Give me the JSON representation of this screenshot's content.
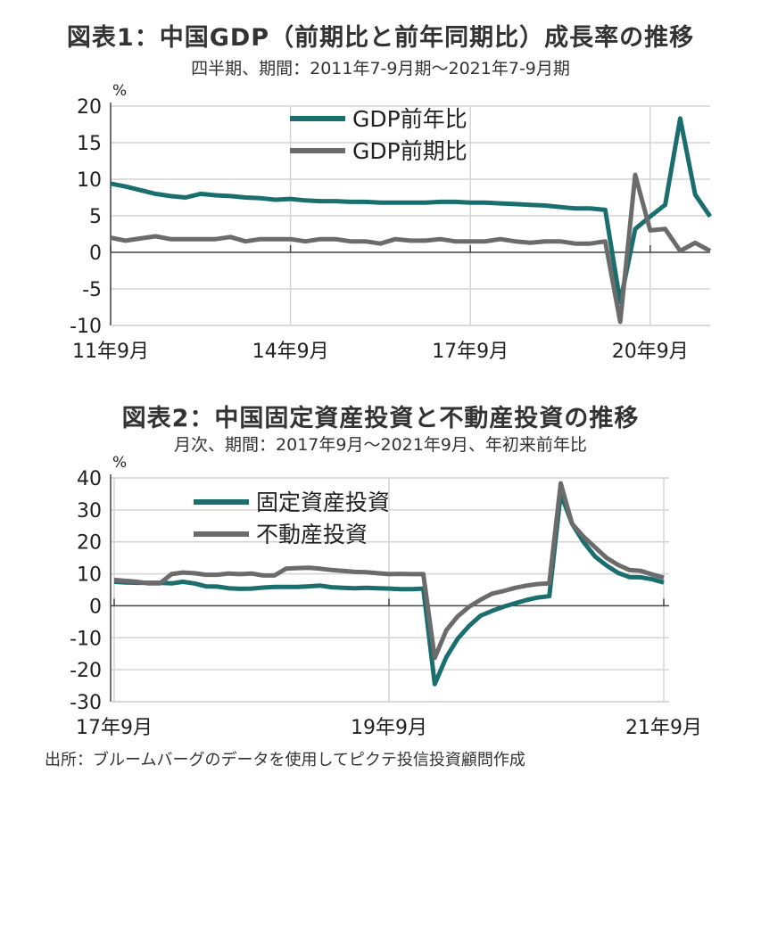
{
  "figure1": {
    "title": "図表1：中国GDP（前期比と前年同期比）成長率の推移",
    "subtitle": "四半期、期間：2011年7-9月期～2021年7-9月期"
  },
  "figure2": {
    "title": "図表2：中国固定資産投資と不動産投資の推移",
    "subtitle": "月次、期間：2017年9月～2021年9月、年初来前年比"
  },
  "source": "出所：ブルームバーグのデータを使用してピクテ投信投資顧問作成",
  "chart_data": [
    {
      "type": "line",
      "title": "図表1：中国GDP（前期比と前年同期比）成長率の推移",
      "subtitle": "四半期、期間：2011年7-9月期～2021年7-9月期",
      "ylabel": "%",
      "ylim": [
        -10,
        20
      ],
      "yticks": [
        "20",
        "15",
        "10",
        "5",
        "0",
        "-5",
        "-10"
      ],
      "yticks_values": [
        20,
        15,
        10,
        5,
        0,
        -5,
        -10
      ],
      "xtick_labels": [
        "11年9月",
        "14年9月",
        "17年9月",
        "20年9月"
      ],
      "xtick_index": [
        0,
        12,
        24,
        36
      ],
      "n_points": 41,
      "legend_position": "top-center",
      "grid": true,
      "series": [
        {
          "name": "GDP前年比",
          "color": "#1a6f6e",
          "values": [
            9.4,
            9.0,
            8.5,
            8.0,
            7.7,
            7.5,
            8.0,
            7.8,
            7.7,
            7.5,
            7.4,
            7.2,
            7.3,
            7.1,
            7.0,
            7.0,
            6.9,
            6.9,
            6.8,
            6.8,
            6.8,
            6.8,
            6.9,
            6.9,
            6.8,
            6.8,
            6.7,
            6.6,
            6.5,
            6.4,
            6.2,
            6.0,
            6.0,
            5.8,
            -6.8,
            3.2,
            4.9,
            6.5,
            18.3,
            7.9,
            4.9
          ]
        },
        {
          "name": "GDP前期比",
          "color": "#6b6b6b",
          "values": [
            2.0,
            1.6,
            1.9,
            2.2,
            1.8,
            1.8,
            1.8,
            1.8,
            2.1,
            1.5,
            1.8,
            1.8,
            1.8,
            1.5,
            1.8,
            1.8,
            1.5,
            1.5,
            1.2,
            1.8,
            1.6,
            1.6,
            1.8,
            1.5,
            1.5,
            1.5,
            1.8,
            1.5,
            1.3,
            1.5,
            1.5,
            1.2,
            1.2,
            1.5,
            -9.5,
            10.6,
            3.0,
            3.2,
            0.2,
            1.3,
            0.2
          ]
        }
      ]
    },
    {
      "type": "line",
      "title": "図表2：中国固定資産投資と不動産投資の推移",
      "subtitle": "月次、期間：2017年9月～2021年9月、年初来前年比",
      "ylabel": "%",
      "ylim": [
        -30,
        40
      ],
      "yticks": [
        "40",
        "30",
        "20",
        "10",
        "0",
        "-10",
        "-20",
        "-30"
      ],
      "yticks_values": [
        40,
        30,
        20,
        10,
        0,
        -10,
        -20,
        -30
      ],
      "xtick_labels": [
        "17年9月",
        "19年9月",
        "21年9月"
      ],
      "xtick_index": [
        0,
        24,
        48
      ],
      "n_points": 49,
      "legend_position": "top-left",
      "grid": true,
      "series": [
        {
          "name": "固定資産投資",
          "color": "#1a6f6e",
          "values": [
            7.5,
            7.3,
            7.2,
            7.2,
            7.2,
            7.0,
            7.5,
            7.0,
            6.1,
            6.0,
            5.5,
            5.3,
            5.4,
            5.7,
            5.9,
            5.9,
            5.9,
            6.1,
            6.3,
            5.8,
            5.6,
            5.5,
            5.6,
            5.5,
            5.4,
            5.2,
            5.2,
            5.4,
            -24.5,
            -16.1,
            -10.3,
            -6.3,
            -3.1,
            -1.6,
            -0.3,
            0.8,
            1.8,
            2.6,
            3.0,
            35.0,
            25.6,
            19.9,
            15.4,
            12.6,
            10.3,
            9.0,
            8.9,
            8.3,
            7.3
          ]
        },
        {
          "name": "不動産投資",
          "color": "#6b6b6b",
          "values": [
            8.1,
            7.8,
            7.5,
            7.0,
            7.0,
            9.9,
            10.4,
            10.2,
            9.7,
            9.7,
            10.1,
            9.9,
            10.1,
            9.5,
            9.5,
            11.6,
            11.8,
            11.9,
            11.6,
            11.2,
            10.9,
            10.6,
            10.5,
            10.2,
            9.9,
            10.0,
            9.9,
            9.9,
            -16.3,
            -7.7,
            -3.3,
            -0.3,
            1.9,
            3.8,
            4.6,
            5.6,
            6.3,
            6.8,
            7.0,
            38.3,
            25.6,
            21.6,
            18.3,
            15.0,
            12.8,
            11.2,
            10.9,
            9.8,
            8.8
          ]
        }
      ]
    }
  ]
}
